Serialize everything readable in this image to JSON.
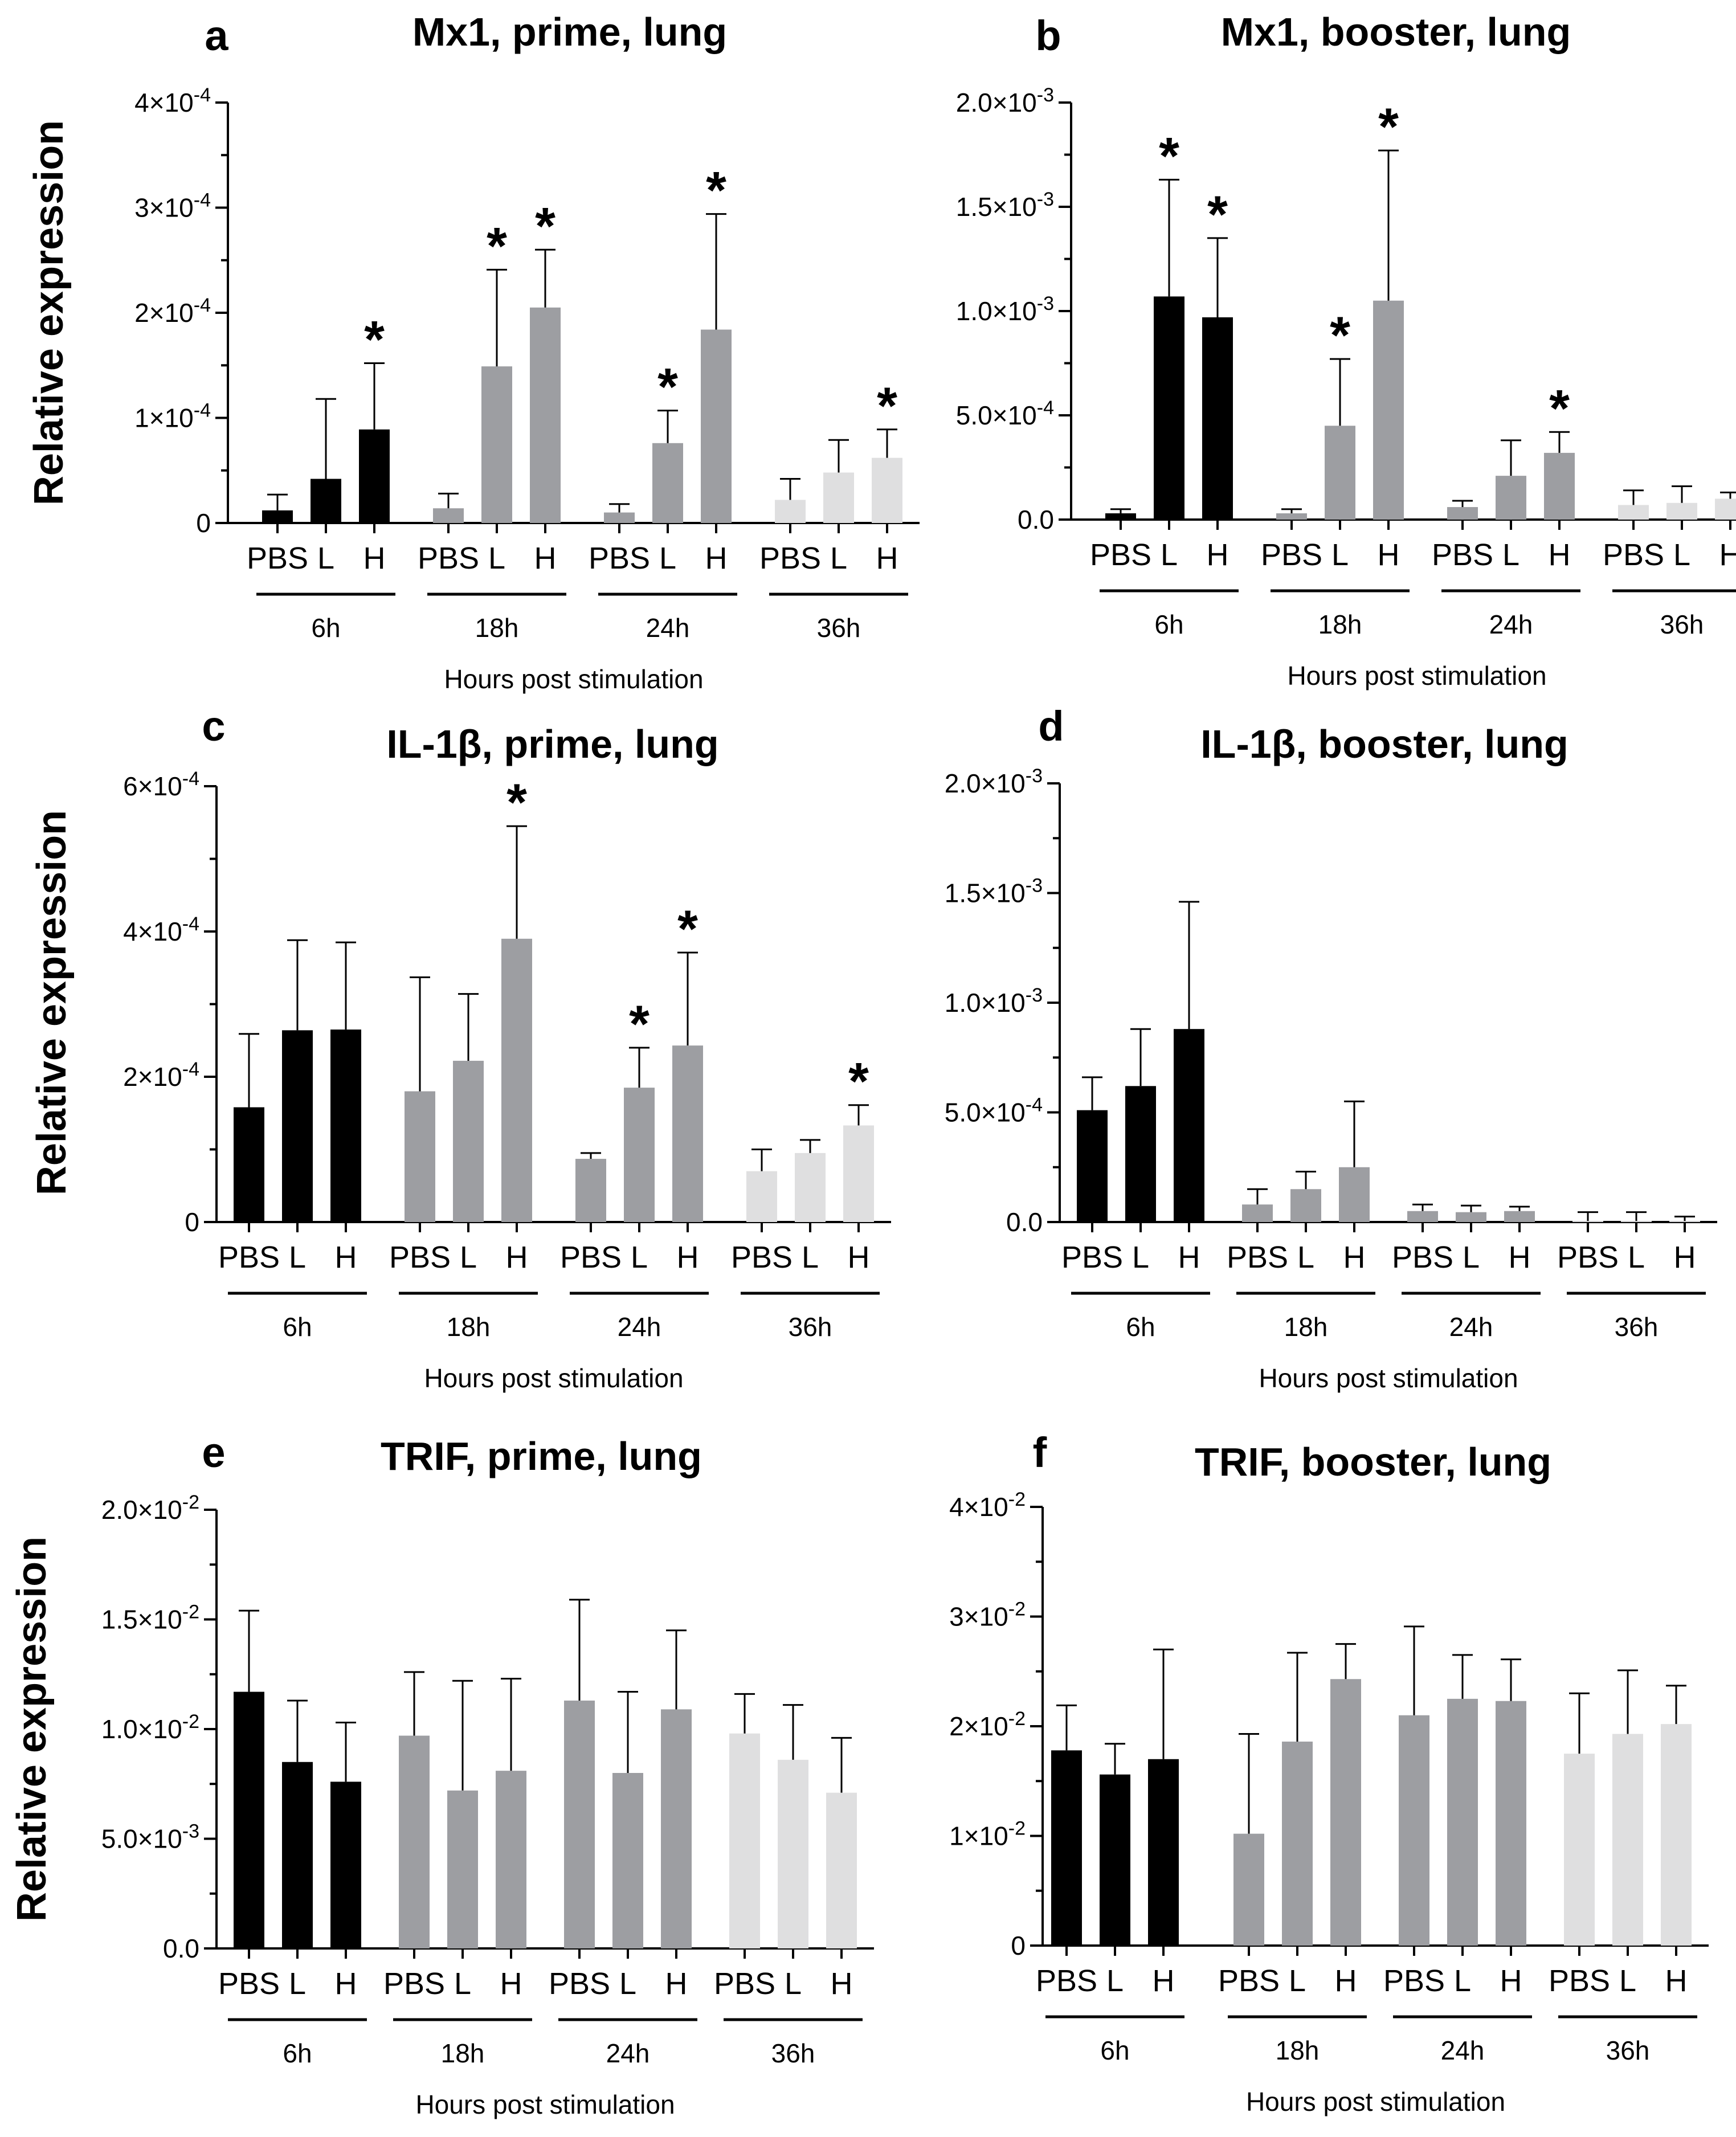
{
  "chart_data": [
    {
      "type": "bar",
      "panel": "a",
      "title": "Mx1, prime, lung",
      "ylabel": "Relative expression",
      "xlabel": "Hours post stimulation",
      "ylim": [
        0,
        0.0004
      ],
      "yticks": [
        {
          "value": 0,
          "label": "0"
        },
        {
          "value": 0.0001,
          "label": "1×10",
          "exp": "-4"
        },
        {
          "value": 0.0002,
          "label": "2×10",
          "exp": "-4"
        },
        {
          "value": 0.0003,
          "label": "3×10",
          "exp": "-4"
        },
        {
          "value": 0.0004,
          "label": "4×10",
          "exp": "-4"
        }
      ],
      "categories": [
        "PBS",
        "L",
        "H"
      ],
      "groups": [
        "6h",
        "18h",
        "24h",
        "36h"
      ],
      "colors": [
        "#000000",
        "#9d9ea2",
        "#9d9ea2",
        "#dfdfe0"
      ],
      "values": [
        [
          1.2e-05,
          4.2e-05,
          8.9e-05
        ],
        [
          1.4e-05,
          0.000149,
          0.000205
        ],
        [
          1e-05,
          7.6e-05,
          0.000184
        ],
        [
          2.2e-05,
          4.8e-05,
          6.2e-05
        ]
      ],
      "errors": [
        [
          1.5e-05,
          7.6e-05,
          6.3e-05
        ],
        [
          1.4e-05,
          9.2e-05,
          5.5e-05
        ],
        [
          8e-06,
          3.1e-05,
          0.00011
        ],
        [
          2e-05,
          3.1e-05,
          2.7e-05
        ]
      ],
      "significant": [
        [
          false,
          false,
          true
        ],
        [
          false,
          true,
          true
        ],
        [
          false,
          true,
          true
        ],
        [
          false,
          false,
          true
        ]
      ]
    },
    {
      "type": "bar",
      "panel": "b",
      "title": "Mx1, booster, lung",
      "ylabel": "",
      "xlabel": "Hours post stimulation",
      "ylim": [
        0,
        0.002
      ],
      "yticks": [
        {
          "value": 0,
          "label": "0.0"
        },
        {
          "value": 0.0005,
          "label": "5.0×10",
          "exp": "-4"
        },
        {
          "value": 0.001,
          "label": "1.0×10",
          "exp": "-3"
        },
        {
          "value": 0.0015,
          "label": "1.5×10",
          "exp": "-3"
        },
        {
          "value": 0.002,
          "label": "2.0×10",
          "exp": "-3"
        }
      ],
      "categories": [
        "PBS",
        "L",
        "H"
      ],
      "groups": [
        "6h",
        "18h",
        "24h",
        "36h"
      ],
      "colors": [
        "#000000",
        "#9d9ea2",
        "#9d9ea2",
        "#dfdfe0"
      ],
      "values": [
        [
          3e-05,
          0.00107,
          0.00097
        ],
        [
          3e-05,
          0.00045,
          0.00105
        ],
        [
          6e-05,
          0.00021,
          0.00032
        ],
        [
          7e-05,
          8e-05,
          0.0001
        ]
      ],
      "errors": [
        [
          2e-05,
          0.00056,
          0.00038
        ],
        [
          2e-05,
          0.00032,
          0.00072
        ],
        [
          3e-05,
          0.00017,
          0.0001
        ],
        [
          7e-05,
          8e-05,
          3e-05
        ]
      ],
      "significant": [
        [
          false,
          true,
          true
        ],
        [
          false,
          true,
          true
        ],
        [
          false,
          false,
          true
        ],
        [
          false,
          false,
          false
        ]
      ]
    },
    {
      "type": "bar",
      "panel": "c",
      "title": "IL-1β, prime, lung",
      "ylabel": "Relative expression",
      "xlabel": "Hours post stimulation",
      "ylim": [
        0,
        0.0006
      ],
      "yticks": [
        {
          "value": 0,
          "label": "0"
        },
        {
          "value": 0.0002,
          "label": "2×10",
          "exp": "-4"
        },
        {
          "value": 0.0004,
          "label": "4×10",
          "exp": "-4"
        },
        {
          "value": 0.0006,
          "label": "6×10",
          "exp": "-4"
        }
      ],
      "categories": [
        "PBS",
        "L",
        "H"
      ],
      "groups": [
        "6h",
        "18h",
        "24h",
        "36h"
      ],
      "colors": [
        "#000000",
        "#9d9ea2",
        "#9d9ea2",
        "#dfdfe0"
      ],
      "values": [
        [
          0.000158,
          0.000264,
          0.000265
        ],
        [
          0.00018,
          0.000222,
          0.00039
        ],
        [
          8.7e-05,
          0.000185,
          0.000243
        ],
        [
          7e-05,
          9.5e-05,
          0.000133
        ]
      ],
      "errors": [
        [
          0.000101,
          0.000124,
          0.00012
        ],
        [
          0.000157,
          9.2e-05,
          0.000155
        ],
        [
          8e-06,
          5.5e-05,
          0.000128
        ],
        [
          3e-05,
          1.8e-05,
          2.8e-05
        ]
      ],
      "significant": [
        [
          false,
          false,
          false
        ],
        [
          false,
          false,
          true
        ],
        [
          false,
          true,
          true
        ],
        [
          false,
          false,
          true
        ]
      ]
    },
    {
      "type": "bar",
      "panel": "d",
      "title": "IL-1β, booster, lung",
      "ylabel": "",
      "xlabel": "Hours post stimulation",
      "ylim": [
        0,
        0.002
      ],
      "yticks": [
        {
          "value": 0,
          "label": "0.0"
        },
        {
          "value": 0.0005,
          "label": "5.0×10",
          "exp": "-4"
        },
        {
          "value": 0.001,
          "label": "1.0×10",
          "exp": "-3"
        },
        {
          "value": 0.0015,
          "label": "1.5×10",
          "exp": "-3"
        },
        {
          "value": 0.002,
          "label": "2.0×10",
          "exp": "-3"
        }
      ],
      "categories": [
        "PBS",
        "L",
        "H"
      ],
      "groups": [
        "6h",
        "18h",
        "24h",
        "36h"
      ],
      "colors": [
        "#000000",
        "#9d9ea2",
        "#9d9ea2",
        "#dfdfe0"
      ],
      "values": [
        [
          0.00051,
          0.00062,
          0.00088
        ],
        [
          8e-05,
          0.00015,
          0.00025
        ],
        [
          5e-05,
          4.5e-05,
          5e-05
        ],
        [
          5e-06,
          5e-06,
          5e-06
        ]
      ],
      "errors": [
        [
          0.00015,
          0.00026,
          0.00058
        ],
        [
          7e-05,
          8e-05,
          0.0003
        ],
        [
          3e-05,
          3e-05,
          2e-05
        ],
        [
          4e-05,
          4e-05,
          2e-05
        ]
      ],
      "significant": [
        [
          false,
          false,
          false
        ],
        [
          false,
          false,
          false
        ],
        [
          false,
          false,
          false
        ],
        [
          false,
          false,
          false
        ]
      ]
    },
    {
      "type": "bar",
      "panel": "e",
      "title": "TRIF, prime, lung",
      "ylabel": "Relative expression",
      "xlabel": "Hours post stimulation",
      "ylim": [
        0,
        0.02
      ],
      "yticks": [
        {
          "value": 0,
          "label": "0.0"
        },
        {
          "value": 0.005,
          "label": "5.0×10",
          "exp": "-3"
        },
        {
          "value": 0.01,
          "label": "1.0×10",
          "exp": "-2"
        },
        {
          "value": 0.015,
          "label": "1.5×10",
          "exp": "-2"
        },
        {
          "value": 0.02,
          "label": "2.0×10",
          "exp": "-2"
        }
      ],
      "categories": [
        "PBS",
        "L",
        "H"
      ],
      "groups": [
        "6h",
        "18h",
        "24h",
        "36h"
      ],
      "colors": [
        "#000000",
        "#9d9ea2",
        "#9d9ea2",
        "#dfdfe0"
      ],
      "values": [
        [
          0.0117,
          0.0085,
          0.0076
        ],
        [
          0.0097,
          0.0072,
          0.0081
        ],
        [
          0.0113,
          0.008,
          0.0109
        ],
        [
          0.0098,
          0.0086,
          0.0071
        ]
      ],
      "errors": [
        [
          0.0037,
          0.0028,
          0.0027
        ],
        [
          0.0029,
          0.005,
          0.0042
        ],
        [
          0.0046,
          0.0037,
          0.0036
        ],
        [
          0.0018,
          0.0025,
          0.0025
        ]
      ],
      "significant": [
        [
          false,
          false,
          false
        ],
        [
          false,
          false,
          false
        ],
        [
          false,
          false,
          false
        ],
        [
          false,
          false,
          false
        ]
      ]
    },
    {
      "type": "bar",
      "panel": "f",
      "title": "TRIF, booster, lung",
      "ylabel": "",
      "xlabel": "Hours post stimulation",
      "ylim": [
        0,
        0.04
      ],
      "yticks": [
        {
          "value": 0,
          "label": "0"
        },
        {
          "value": 0.01,
          "label": "1×10",
          "exp": "-2"
        },
        {
          "value": 0.02,
          "label": "2×10",
          "exp": "-2"
        },
        {
          "value": 0.03,
          "label": "3×10",
          "exp": "-2"
        },
        {
          "value": 0.04,
          "label": "4×10",
          "exp": "-2"
        }
      ],
      "categories": [
        "PBS",
        "L",
        "H"
      ],
      "groups": [
        "6h",
        "18h",
        "24h",
        "36h"
      ],
      "colors": [
        "#000000",
        "#9d9ea2",
        "#9d9ea2",
        "#dfdfe0"
      ],
      "values": [
        [
          0.0178,
          0.0156,
          0.017
        ],
        [
          0.0102,
          0.0186,
          0.0243
        ],
        [
          0.021,
          0.0225,
          0.0223
        ],
        [
          0.0175,
          0.0193,
          0.0202
        ]
      ],
      "errors": [
        [
          0.0041,
          0.0028,
          0.01
        ],
        [
          0.0091,
          0.0081,
          0.0032
        ],
        [
          0.0081,
          0.004,
          0.0038
        ],
        [
          0.0055,
          0.0058,
          0.0035
        ]
      ],
      "significant": [
        [
          false,
          false,
          false
        ],
        [
          false,
          false,
          false
        ],
        [
          false,
          false,
          false
        ],
        [
          false,
          false,
          false
        ]
      ]
    }
  ]
}
